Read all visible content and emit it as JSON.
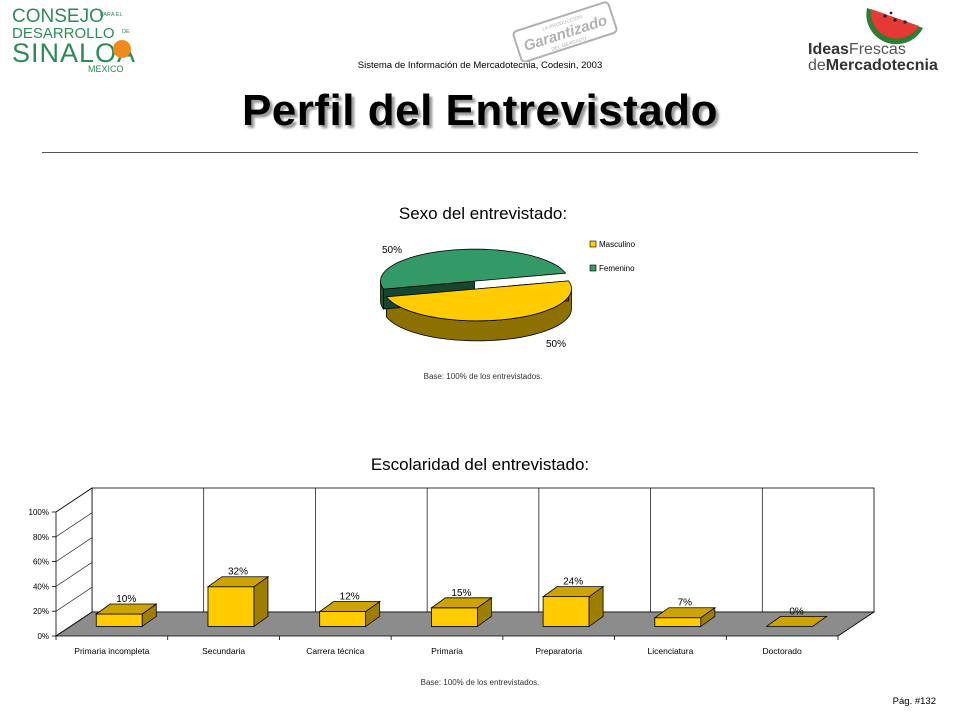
{
  "header": {
    "left_logo": {
      "line1": "CONSEJO",
      "line1_small": "PARA EL",
      "line2": "DESARROLLO",
      "line2_small": "DE",
      "line3": "SINALOA",
      "line4": "MEXICO"
    },
    "stamp": {
      "top_text": "LA PRODUCCIÓN",
      "main_text": "Garantizado",
      "bottom_text": "DEL MERCADO"
    },
    "right_logo": {
      "line1_bold": "Ideas",
      "line1_light": "Frescas",
      "line2_light": "de",
      "line2_bold": "Mercadotecnia"
    },
    "subtitle": "Sistema de Información de Mercadotecnia, Codesin, 2003"
  },
  "page_title": "Perfil del Entrevistado",
  "chart_data": [
    {
      "type": "pie",
      "title": "Sexo del entrevistado:",
      "labels": [
        "Masculino",
        "Femenino"
      ],
      "values": [
        50,
        50
      ],
      "data_labels": [
        "50%",
        "50%"
      ],
      "colors": [
        "#ffcc00",
        "#339966"
      ],
      "legend": "right",
      "note": "Base: 100% de los entrevistados."
    },
    {
      "type": "bar",
      "title": "Escolaridad del entrevistado:",
      "categories": [
        "Primaria incompleta",
        "Secundaria",
        "Carrera técnica",
        "Primaria",
        "Preparatoria",
        "Licenciatura",
        "Doctorado"
      ],
      "values": [
        10,
        32,
        12,
        15,
        24,
        7,
        0
      ],
      "data_labels": [
        "10%",
        "32%",
        "12%",
        "15%",
        "24%",
        "7%",
        "0%"
      ],
      "ylim": [
        0,
        100
      ],
      "yticks": [
        "0%",
        "20%",
        "40%",
        "60%",
        "80%",
        "100%"
      ],
      "grid": true,
      "color": "#ffcc00",
      "note": "Base: 100% de los entrevistados."
    }
  ],
  "footer": {
    "page_number": "Pág. #132"
  }
}
